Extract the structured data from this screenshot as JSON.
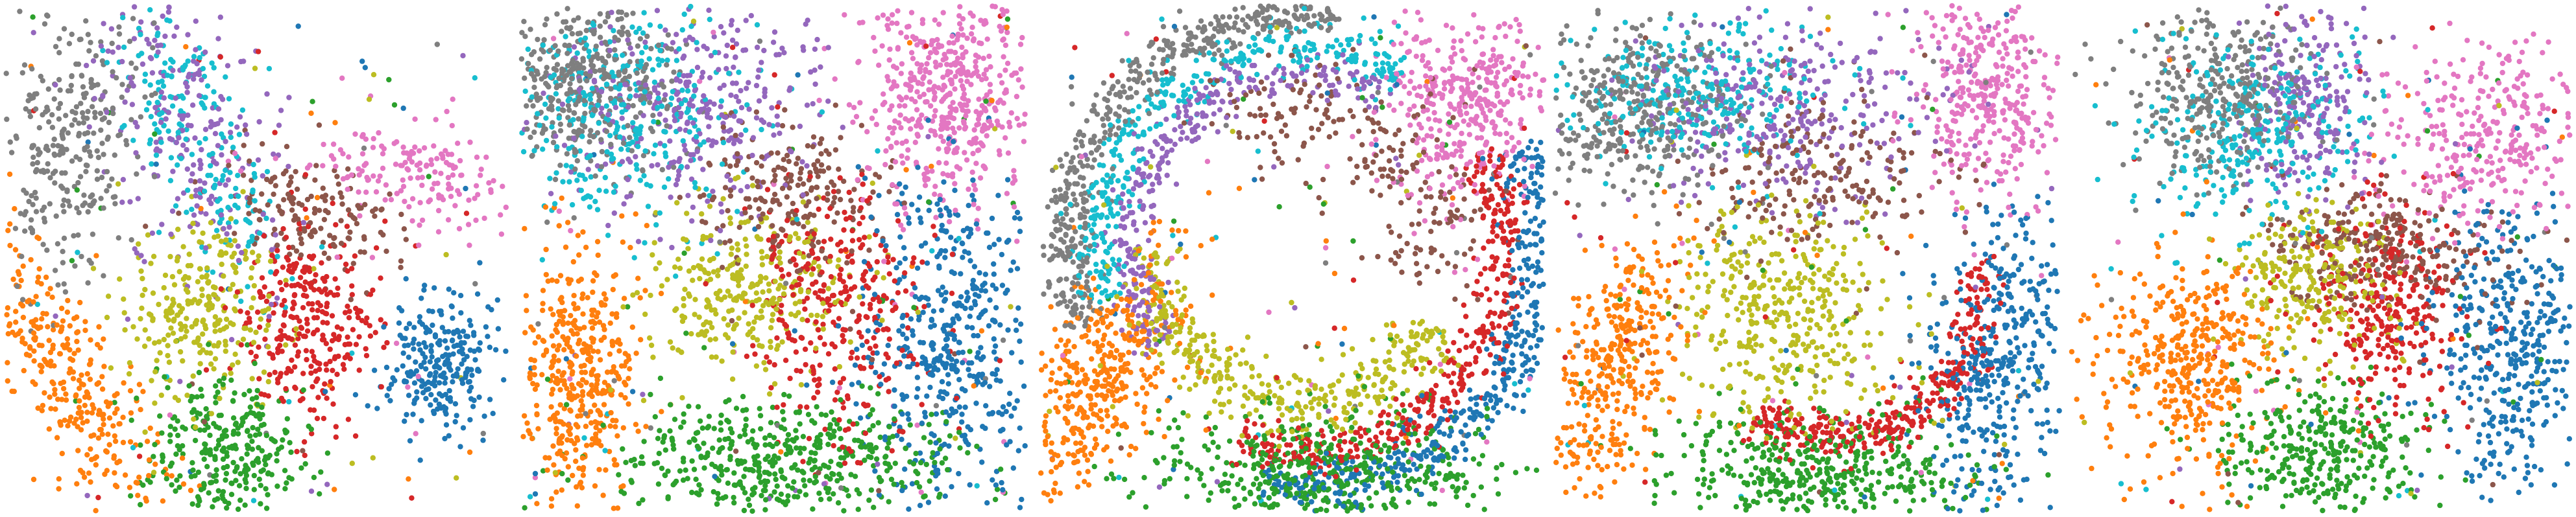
{
  "figure": {
    "background": "#ffffff",
    "panel_count": 5
  },
  "chart_data": [
    {
      "type": "scatter",
      "title": "",
      "xlabel": "",
      "ylabel": "",
      "axes_visible": false,
      "grid": false,
      "legend": "none",
      "xlim": [
        0,
        100
      ],
      "ylim": [
        0,
        100
      ],
      "point_radius": 4.2,
      "clusters": [
        {
          "color": "#7f7f7f",
          "count": 300,
          "shape": "blob",
          "cx": 14,
          "cy": 73,
          "sx": 6.5,
          "sy": 14,
          "rot": -12
        },
        {
          "color": "#9467bd",
          "count": 260,
          "shape": "blob",
          "cx": 37,
          "cy": 77,
          "sx": 8,
          "sy": 17,
          "rot": 22
        },
        {
          "color": "#17becf",
          "count": 220,
          "shape": "blob",
          "cx": 37,
          "cy": 76,
          "sx": 5,
          "sy": 18,
          "rot": 24
        },
        {
          "color": "#e377c2",
          "count": 180,
          "shape": "blob",
          "cx": 82,
          "cy": 66,
          "sx": 12,
          "sy": 5,
          "rot": -8
        },
        {
          "color": "#8c564b",
          "count": 150,
          "shape": "blob",
          "cx": 60,
          "cy": 58,
          "sx": 9,
          "sy": 5.5,
          "rot": -25
        },
        {
          "color": "#bcbd22",
          "count": 270,
          "shape": "blob",
          "cx": 40,
          "cy": 40,
          "sx": 8,
          "sy": 8.5,
          "rot": 0
        },
        {
          "color": "#d62728",
          "count": 300,
          "shape": "blob",
          "cx": 60,
          "cy": 37,
          "sx": 7,
          "sy": 10,
          "rot": -5
        },
        {
          "color": "#1f77b4",
          "count": 250,
          "shape": "blob",
          "cx": 87,
          "cy": 30,
          "sx": 6,
          "sy": 7,
          "rot": 0
        },
        {
          "color": "#ff7f0e",
          "count": 320,
          "shape": "blob",
          "cx": 14,
          "cy": 27,
          "sx": 5.5,
          "sy": 17,
          "rot": 32
        },
        {
          "color": "#2ca02c",
          "count": 300,
          "shape": "blob",
          "cx": 44,
          "cy": 12,
          "sx": 8,
          "sy": 7.5,
          "rot": -20
        }
      ]
    },
    {
      "type": "scatter",
      "title": "",
      "xlabel": "",
      "ylabel": "",
      "axes_visible": false,
      "grid": false,
      "legend": "none",
      "xlim": [
        0,
        100
      ],
      "ylim": [
        0,
        100
      ],
      "point_radius": 4.2,
      "clusters": [
        {
          "color": "#7f7f7f",
          "count": 420,
          "shape": "blob",
          "cx": 12,
          "cy": 85,
          "sx": 9,
          "sy": 9,
          "rot": 0
        },
        {
          "color": "#17becf",
          "count": 320,
          "shape": "blob",
          "cx": 20,
          "cy": 78,
          "sx": 11,
          "sy": 11,
          "rot": 15
        },
        {
          "color": "#9467bd",
          "count": 340,
          "shape": "blob",
          "cx": 35,
          "cy": 80,
          "sx": 13,
          "sy": 10,
          "rot": 10
        },
        {
          "color": "#e377c2",
          "count": 520,
          "shape": "blob",
          "cx": 84,
          "cy": 82,
          "sx": 9,
          "sy": 11,
          "rot": 0
        },
        {
          "color": "#8c564b",
          "count": 200,
          "shape": "blob",
          "cx": 54,
          "cy": 62,
          "sx": 9,
          "sy": 8,
          "rot": 0
        },
        {
          "color": "#bcbd22",
          "count": 300,
          "shape": "blob",
          "cx": 45,
          "cy": 44,
          "sx": 10,
          "sy": 8,
          "rot": 0
        },
        {
          "color": "#d62728",
          "count": 320,
          "shape": "blob",
          "cx": 63,
          "cy": 40,
          "sx": 8,
          "sy": 13,
          "rot": 10
        },
        {
          "color": "#1f77b4",
          "count": 480,
          "shape": "blob",
          "cx": 85,
          "cy": 33,
          "sx": 9,
          "sy": 16,
          "rot": 0
        },
        {
          "color": "#ff7f0e",
          "count": 420,
          "shape": "blob",
          "cx": 12,
          "cy": 27,
          "sx": 6,
          "sy": 13,
          "rot": 0
        },
        {
          "color": "#2ca02c",
          "count": 500,
          "shape": "blob",
          "cx": 52,
          "cy": 10,
          "sx": 17,
          "sy": 7,
          "rot": 0
        }
      ]
    },
    {
      "type": "scatter",
      "title": "",
      "xlabel": "",
      "ylabel": "",
      "axes_visible": false,
      "grid": false,
      "legend": "none",
      "xlim": [
        0,
        100
      ],
      "ylim": [
        0,
        100
      ],
      "point_radius": 4.2,
      "clusters": [
        {
          "color": "#7f7f7f",
          "count": 480,
          "shape": "arc",
          "cx": 52,
          "cy": 52,
          "r": 46,
          "w": 5,
          "a0": 80,
          "a1": 200
        },
        {
          "color": "#17becf",
          "count": 360,
          "shape": "arc",
          "cx": 52,
          "cy": 52,
          "r": 40,
          "w": 5,
          "a0": 60,
          "a1": 195
        },
        {
          "color": "#9467bd",
          "count": 320,
          "shape": "arc",
          "cx": 52,
          "cy": 52,
          "r": 34,
          "w": 4.5,
          "a0": 60,
          "a1": 215
        },
        {
          "color": "#e377c2",
          "count": 380,
          "shape": "blob",
          "cx": 84,
          "cy": 82,
          "sx": 8,
          "sy": 10,
          "rot": 0
        },
        {
          "color": "#8c564b",
          "count": 220,
          "shape": "arc",
          "cx": 52,
          "cy": 52,
          "r": 28,
          "w": 12,
          "a0": -20,
          "a1": 120
        },
        {
          "color": "#bcbd22",
          "count": 380,
          "shape": "arc",
          "cx": 52,
          "cy": 52,
          "r": 30,
          "w": 7,
          "a0": 180,
          "a1": 330
        },
        {
          "color": "#d62728",
          "count": 380,
          "shape": "arc",
          "cx": 52,
          "cy": 52,
          "r": 40,
          "w": 5,
          "a0": 250,
          "a1": 390
        },
        {
          "color": "#1f77b4",
          "count": 460,
          "shape": "arc",
          "cx": 52,
          "cy": 52,
          "r": 47,
          "w": 6,
          "a0": 260,
          "a1": 385
        },
        {
          "color": "#ff7f0e",
          "count": 420,
          "shape": "blob",
          "cx": 12,
          "cy": 27,
          "sx": 6,
          "sy": 14,
          "rot": -28
        },
        {
          "color": "#2ca02c",
          "count": 480,
          "shape": "blob",
          "cx": 55,
          "cy": 8,
          "sx": 16,
          "sy": 6,
          "rot": 0
        }
      ]
    },
    {
      "type": "scatter",
      "title": "",
      "xlabel": "",
      "ylabel": "",
      "axes_visible": false,
      "grid": false,
      "legend": "none",
      "xlim": [
        0,
        100
      ],
      "ylim": [
        0,
        100
      ],
      "point_radius": 4.2,
      "clusters": [
        {
          "color": "#7f7f7f",
          "count": 380,
          "shape": "blob",
          "cx": 17,
          "cy": 80,
          "sx": 11,
          "sy": 9,
          "rot": 10
        },
        {
          "color": "#17becf",
          "count": 280,
          "shape": "blob",
          "cx": 28,
          "cy": 82,
          "sx": 13,
          "sy": 7,
          "rot": 0
        },
        {
          "color": "#9467bd",
          "count": 320,
          "shape": "blob",
          "cx": 45,
          "cy": 80,
          "sx": 16,
          "sy": 9,
          "rot": 0
        },
        {
          "color": "#e377c2",
          "count": 360,
          "shape": "blob",
          "cx": 86,
          "cy": 82,
          "sx": 7,
          "sy": 11,
          "rot": 0
        },
        {
          "color": "#8c564b",
          "count": 200,
          "shape": "blob",
          "cx": 55,
          "cy": 66,
          "sx": 12,
          "sy": 8,
          "rot": 0
        },
        {
          "color": "#bcbd22",
          "count": 380,
          "shape": "blob",
          "cx": 45,
          "cy": 40,
          "sx": 10,
          "sy": 11,
          "rot": 0
        },
        {
          "color": "#d62728",
          "count": 340,
          "shape": "arc",
          "cx": 55,
          "cy": 45,
          "r": 30,
          "w": 5,
          "a0": 240,
          "a1": 370
        },
        {
          "color": "#1f77b4",
          "count": 400,
          "shape": "blob",
          "cx": 87,
          "cy": 28,
          "sx": 7,
          "sy": 15,
          "rot": -10
        },
        {
          "color": "#ff7f0e",
          "count": 380,
          "shape": "blob",
          "cx": 12,
          "cy": 28,
          "sx": 5.5,
          "sy": 14,
          "rot": -20
        },
        {
          "color": "#2ca02c",
          "count": 420,
          "shape": "blob",
          "cx": 52,
          "cy": 8,
          "sx": 15,
          "sy": 6,
          "rot": 0
        }
      ]
    },
    {
      "type": "scatter",
      "title": "",
      "xlabel": "",
      "ylabel": "",
      "axes_visible": false,
      "grid": false,
      "legend": "none",
      "xlim": [
        0,
        100
      ],
      "ylim": [
        0,
        100
      ],
      "point_radius": 4.2,
      "clusters": [
        {
          "color": "#7f7f7f",
          "count": 340,
          "shape": "blob",
          "cx": 30,
          "cy": 82,
          "sx": 10,
          "sy": 8,
          "rot": 0
        },
        {
          "color": "#17becf",
          "count": 300,
          "shape": "blob",
          "cx": 37,
          "cy": 75,
          "sx": 11,
          "sy": 9,
          "rot": 10
        },
        {
          "color": "#9467bd",
          "count": 220,
          "shape": "blob",
          "cx": 46,
          "cy": 80,
          "sx": 6,
          "sy": 10,
          "rot": 0
        },
        {
          "color": "#e377c2",
          "count": 320,
          "shape": "blob",
          "cx": 84,
          "cy": 74,
          "sx": 11,
          "sy": 9,
          "rot": 30
        },
        {
          "color": "#8c564b",
          "count": 260,
          "shape": "blob",
          "cx": 62,
          "cy": 52,
          "sx": 12,
          "sy": 5.5,
          "rot": -10
        },
        {
          "color": "#bcbd22",
          "count": 260,
          "shape": "blob",
          "cx": 48,
          "cy": 45,
          "sx": 8,
          "sy": 7,
          "rot": 0
        },
        {
          "color": "#d62728",
          "count": 300,
          "shape": "blob",
          "cx": 63,
          "cy": 40,
          "sx": 8,
          "sy": 10,
          "rot": 0
        },
        {
          "color": "#1f77b4",
          "count": 420,
          "shape": "blob",
          "cx": 88,
          "cy": 33,
          "sx": 8,
          "sy": 14,
          "rot": 0
        },
        {
          "color": "#ff7f0e",
          "count": 400,
          "shape": "blob",
          "cx": 24,
          "cy": 30,
          "sx": 9,
          "sy": 10,
          "rot": 0
        },
        {
          "color": "#2ca02c",
          "count": 340,
          "shape": "blob",
          "cx": 51,
          "cy": 12,
          "sx": 11,
          "sy": 7,
          "rot": 0
        }
      ]
    }
  ]
}
